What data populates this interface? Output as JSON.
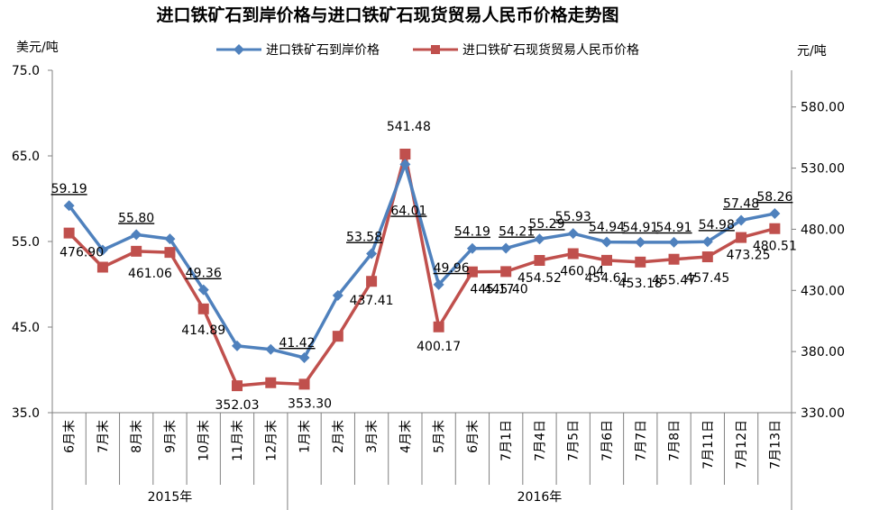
{
  "title": "进口铁矿石到岸价格与进口铁矿石现货贸易人民币价格走势图",
  "left_unit": "美元/吨",
  "right_unit": "元/吨",
  "colors": {
    "usd": "#4F81BD",
    "rmb": "#C0504D",
    "axis": "#808080"
  },
  "chart_data": {
    "type": "line",
    "title": "进口铁矿石到岸价格与进口铁矿石现货贸易人民币价格走势图",
    "categories": [
      "6月末",
      "7月末",
      "8月末",
      "9月末",
      "10月末",
      "11月末",
      "12月末",
      "1月末",
      "2月末",
      "3月末",
      "4月末",
      "5月末",
      "6月末",
      "7月1日",
      "7月4日",
      "7月5日",
      "7月6日",
      "7月7日",
      "7月8日",
      "7月11日",
      "7月12日",
      "7月13日"
    ],
    "year_groups": [
      {
        "label": "2015年",
        "count": 7
      },
      {
        "label": "2016年",
        "count": 15
      }
    ],
    "y_left": {
      "label": "美元/吨",
      "min": 35.0,
      "max": 75.0,
      "ticks": [
        "35.0",
        "45.0",
        "55.0",
        "65.0",
        "75.0"
      ]
    },
    "y_right": {
      "label": "元/吨",
      "min": 330,
      "max": 610,
      "ticks": [
        "330.00",
        "380.00",
        "430.00",
        "480.00",
        "530.00",
        "580.00"
      ]
    },
    "legend_position": "top",
    "grid": false,
    "series": [
      {
        "name": "进口铁矿石到岸价格",
        "axis": "left",
        "values": [
          59.19,
          54.0,
          55.8,
          55.3,
          49.36,
          42.8,
          42.4,
          41.42,
          48.7,
          53.58,
          64.01,
          49.96,
          54.19,
          54.21,
          55.29,
          55.93,
          54.94,
          54.91,
          54.91,
          54.98,
          57.48,
          58.26
        ],
        "labels": [
          "59.19",
          "",
          "55.80",
          "",
          "49.36",
          "",
          "",
          "41.42",
          "",
          "53.58",
          "64.01",
          "49.96",
          "54.19",
          "54.21",
          "55.29",
          "55.93",
          "54.94",
          "54.91",
          "54.91",
          "54.98",
          "57.48",
          "58.26"
        ]
      },
      {
        "name": "进口铁矿石现货贸易人民币价格",
        "axis": "right",
        "values": [
          476.9,
          449.0,
          462.0,
          461.06,
          414.89,
          352.03,
          354.5,
          353.3,
          392.5,
          437.41,
          541.48,
          400.17,
          445.17,
          445.4,
          454.52,
          460.04,
          454.61,
          453.18,
          455.47,
          457.45,
          473.25,
          480.51
        ],
        "labels": [
          "476.90",
          "",
          "",
          "461.06",
          "414.89",
          "352.03",
          "",
          "353.30",
          "",
          "437.41",
          "541.48",
          "400.17",
          "445.17",
          "445.40",
          "454.52",
          "460.04",
          "454.61",
          "453.18",
          "455.47",
          "457.45",
          "473.25",
          "480.51"
        ]
      }
    ]
  }
}
